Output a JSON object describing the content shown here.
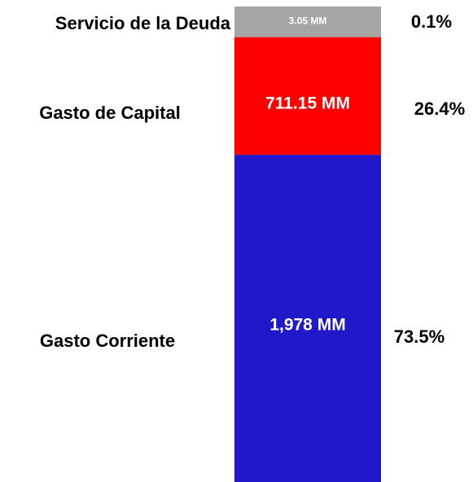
{
  "chart_data": {
    "type": "stacked-bar",
    "categories": [
      "Gasto Corriente",
      "Gasto de Capital",
      "Servicio de la Deuda"
    ],
    "values": [
      1978,
      711.15,
      3.05
    ],
    "value_labels": [
      "1,978 MM",
      "711.15 MM",
      "3.05 MM"
    ],
    "shares": [
      73.5,
      26.4,
      0.1
    ],
    "share_labels": [
      "73.5%",
      "26.4%",
      "0.1%"
    ],
    "colors": [
      "#2119c9",
      "#ff0000",
      "#a6a6a6"
    ]
  }
}
